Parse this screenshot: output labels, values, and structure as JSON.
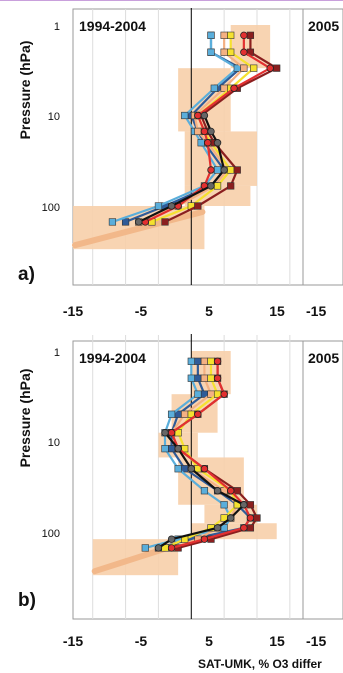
{
  "figure": {
    "xlabel": "SAT-UMK, % O3 differ",
    "ylabel": "Pressure (hPa)",
    "xticks": [
      "-15",
      "-5",
      "5",
      "15"
    ],
    "xticks_next_panel": "-15",
    "yticks": [
      "1",
      "10",
      "100"
    ]
  },
  "panels": [
    {
      "label": "a)",
      "period": "1994-2004",
      "next_period": "2005"
    },
    {
      "label": "b)",
      "period": "1994-2004",
      "next_period": "2005"
    }
  ],
  "colors": {
    "band": "#f7cfaa",
    "band_diag": "#f2b88a",
    "frame": "#9a9a9a",
    "grid": "#dddddd",
    "zero": "#000000",
    "top_rule": "#c9a0dc"
  },
  "chart_data": [
    {
      "type": "line",
      "title": "1994-2004",
      "xlabel": "SAT-UMK, % O3 differ",
      "ylabel": "Pressure (hPa)",
      "xlim": [
        -18,
        17
      ],
      "ylim_pressure": [
        1,
        300
      ],
      "yscale": "log",
      "grid": true,
      "pressure": [
        1.3,
        2,
        3,
        5,
        10,
        15,
        20,
        40,
        60,
        100,
        150
      ],
      "band": [
        {
          "p": [
            1.0,
            3.0
          ],
          "x": [
            6,
            12
          ]
        },
        {
          "p": [
            3.0,
            15.0
          ],
          "x": [
            -2,
            6
          ]
        },
        {
          "p": [
            15.0,
            60.0
          ],
          "x": [
            -1,
            10
          ]
        },
        {
          "p": [
            60.0,
            100.0
          ],
          "x": [
            -1,
            9
          ]
        },
        {
          "p": [
            100.0,
            300.0
          ],
          "x": [
            -18,
            2
          ]
        }
      ],
      "series": [
        {
          "color": "#2f5b98",
          "marker": "square",
          "values": [
            3,
            3,
            7.5,
            4,
            0,
            1,
            2,
            5,
            3,
            -4,
            -10
          ]
        },
        {
          "color": "#5aaedb",
          "marker": "square",
          "values": [
            3,
            3,
            7,
            3.5,
            -1,
            0.5,
            1.5,
            4,
            2,
            -5,
            -12
          ]
        },
        {
          "color": "#f4b183",
          "marker": "square",
          "values": [
            5,
            5,
            8,
            5,
            0.5,
            1,
            2.5,
            5.5,
            3.5,
            -2,
            -8
          ]
        },
        {
          "color": "#f5e12f",
          "marker": "square",
          "values": [
            6,
            6,
            9.5,
            6,
            1,
            2,
            3,
            6,
            4,
            0,
            -6
          ]
        },
        {
          "color": "#8b1f1f",
          "marker": "square",
          "values": [
            9,
            9,
            13,
            7,
            1.5,
            2.5,
            3.5,
            7,
            6,
            1,
            -4
          ]
        },
        {
          "color": "#e23030",
          "marker": "circle",
          "values": [
            8,
            8,
            12,
            6.5,
            1,
            2,
            2.5,
            3,
            2,
            -2,
            -7
          ]
        },
        {
          "color": "#111111",
          "marker": "circle",
          "values": [
            null,
            null,
            null,
            null,
            2,
            3,
            4,
            5,
            3,
            -3,
            -8
          ]
        }
      ]
    },
    {
      "type": "line",
      "title": "1994-2004",
      "xlabel": "SAT-UMK, % O3 differ",
      "ylabel": "Pressure (hPa)",
      "xlim": [
        -18,
        17
      ],
      "ylim_pressure": [
        1,
        300
      ],
      "yscale": "log",
      "grid": true,
      "pressure": [
        1.3,
        2,
        3,
        5,
        8,
        12,
        20,
        35,
        50,
        70,
        90,
        120,
        150
      ],
      "band": [
        {
          "p": [
            1.0,
            3.0
          ],
          "x": [
            0,
            6
          ]
        },
        {
          "p": [
            3.0,
            8.0
          ],
          "x": [
            -3,
            4
          ]
        },
        {
          "p": [
            8.0,
            15.0
          ],
          "x": [
            -5,
            1
          ]
        },
        {
          "p": [
            15.0,
            50.0
          ],
          "x": [
            -2,
            8
          ]
        },
        {
          "p": [
            50.0,
            80.0
          ],
          "x": [
            2,
            10
          ]
        },
        {
          "p": [
            80.0,
            120.0
          ],
          "x": [
            0,
            13
          ]
        },
        {
          "p": [
            120.0,
            300.0
          ],
          "x": [
            -15,
            -2
          ]
        }
      ],
      "series": [
        {
          "color": "#2f5b98",
          "marker": "square",
          "values": [
            1,
            1,
            2,
            -2,
            -3,
            -3,
            -1,
            4,
            7,
            9,
            8,
            0,
            -5
          ]
        },
        {
          "color": "#5aaedb",
          "marker": "square",
          "values": [
            0,
            0,
            1,
            -3,
            -4,
            -4,
            -2,
            2,
            5,
            6,
            5,
            -2,
            -7
          ]
        },
        {
          "color": "#f4b183",
          "marker": "square",
          "values": [
            2,
            2,
            3,
            -1,
            -3,
            -2,
            0,
            5,
            7,
            6,
            4,
            1,
            -3
          ]
        },
        {
          "color": "#f5e12f",
          "marker": "square",
          "values": [
            3,
            3,
            4,
            0,
            -2,
            -1,
            1,
            6,
            7,
            5,
            3,
            -1,
            -4
          ]
        },
        {
          "color": "#8b1f1f",
          "marker": "square",
          "values": [
            4,
            4,
            5,
            1,
            -3,
            -2,
            2,
            7,
            9,
            10,
            9,
            3,
            -2
          ]
        },
        {
          "color": "#e23030",
          "marker": "circle",
          "values": [
            4,
            4,
            5,
            1,
            -3,
            -2,
            2,
            6,
            8,
            9,
            8,
            2,
            -3
          ]
        },
        {
          "color": "#111111",
          "marker": "circle",
          "values": [
            null,
            null,
            null,
            null,
            -4,
            -2,
            0,
            4,
            8,
            6,
            4,
            -3,
            -5
          ]
        }
      ]
    }
  ]
}
